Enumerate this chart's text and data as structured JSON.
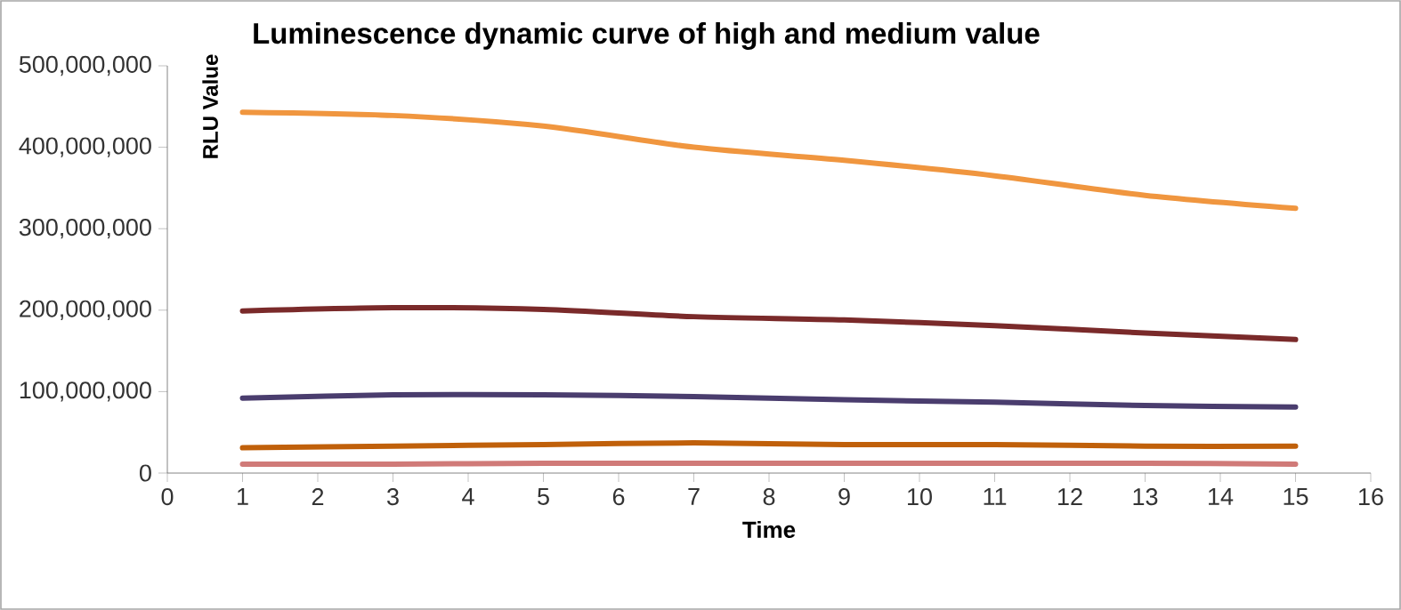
{
  "chart_data": {
    "type": "line",
    "title": "Luminescence dynamic curve of high and medium value",
    "xlabel": "Time",
    "ylabel": "RLU Value",
    "x": [
      1,
      3,
      5,
      7,
      9,
      11,
      13,
      15
    ],
    "series": [
      {
        "color": "#f0963f",
        "values": [
          443000000,
          439000000,
          426000000,
          400000000,
          384000000,
          365000000,
          341000000,
          325000000
        ]
      },
      {
        "color": "#7a2a2a",
        "values": [
          199000000,
          203000000,
          201000000,
          192000000,
          188000000,
          181000000,
          172000000,
          164000000
        ]
      },
      {
        "color": "#4a3d6e",
        "values": [
          92000000,
          96000000,
          96000000,
          94000000,
          90000000,
          87000000,
          83000000,
          81000000
        ]
      },
      {
        "color": "#c0600a",
        "values": [
          31000000,
          33000000,
          35000000,
          37000000,
          35000000,
          35000000,
          33000000,
          33000000
        ]
      },
      {
        "color": "#d07a78",
        "values": [
          11000000,
          11000000,
          12000000,
          12000000,
          12000000,
          12000000,
          12000000,
          11000000
        ]
      }
    ],
    "xlim": [
      0,
      16
    ],
    "xticks": [
      0,
      1,
      2,
      3,
      4,
      5,
      6,
      7,
      8,
      9,
      10,
      11,
      12,
      13,
      14,
      15,
      16
    ],
    "ylim": [
      0,
      500000000
    ],
    "yticks": [
      {
        "value": 0,
        "label": "0"
      },
      {
        "value": 100000000,
        "label": "100,000,000"
      },
      {
        "value": 200000000,
        "label": "200,000,000"
      },
      {
        "value": 300000000,
        "label": "300,000,000"
      },
      {
        "value": 400000000,
        "label": "400,000,000"
      },
      {
        "value": 500000000,
        "label": "500,000,000"
      }
    ],
    "grid": false,
    "marker": "none",
    "line_style": "solid"
  }
}
